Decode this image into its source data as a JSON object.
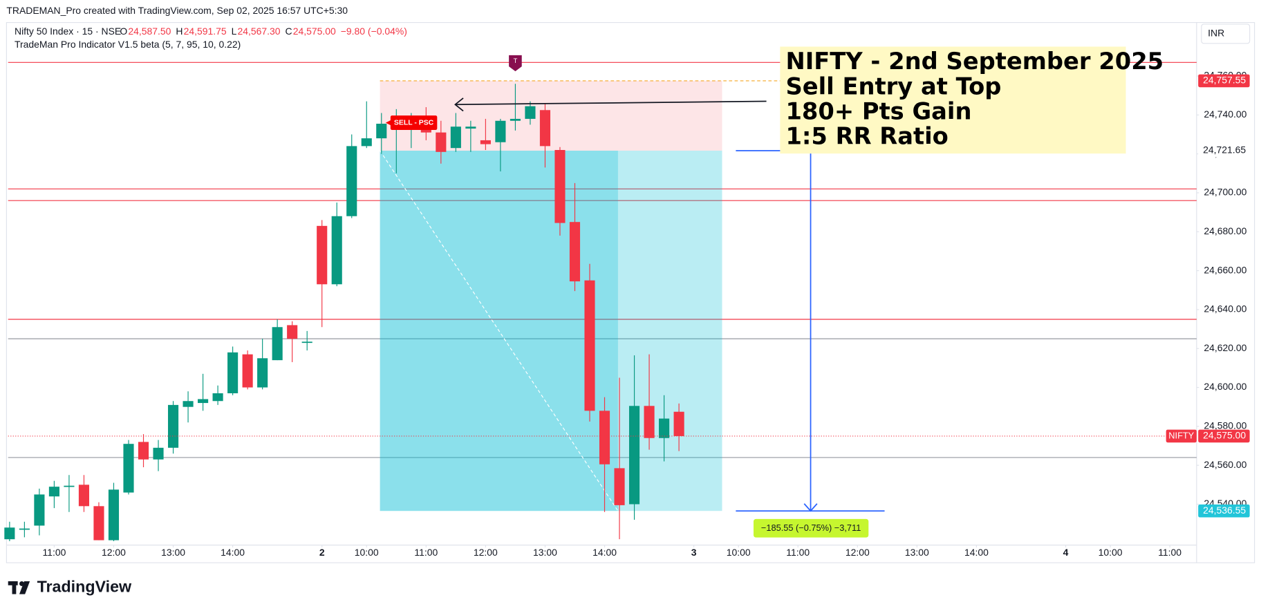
{
  "header": {
    "credit": "TRADEMAN_Pro created with TradingView.com, Sep 02, 2025 16:57 UTC+5:30",
    "symbol": "Nifty 50 Index · 15 · NSE",
    "ohlc": [
      {
        "key": "O",
        "text": "24,587.50"
      },
      {
        "key": "H",
        "text": "24,591.75"
      },
      {
        "key": "L",
        "text": "24,567.30"
      },
      {
        "key": "C",
        "text": "24,575.00"
      }
    ],
    "change": "−9.80 (−0.04%)",
    "indicator": "TradeMan Pro Indicator V1.5 beta (5, 7, 95, 10, 0.22)",
    "currency": "INR"
  },
  "footer": {
    "logo": "TradingView"
  },
  "chart_data": {
    "type": "candlestick",
    "x": [
      0,
      1,
      2,
      3,
      4,
      5,
      6,
      7,
      8,
      9,
      10,
      11,
      12,
      13,
      14,
      15,
      16,
      17,
      18,
      19,
      20,
      21,
      22,
      23,
      24,
      25,
      26,
      27,
      28,
      29,
      30,
      31,
      32,
      33,
      34,
      35,
      36,
      37,
      38,
      39,
      40,
      41,
      42,
      43,
      44,
      45
    ],
    "open": [
      24522,
      24527,
      24529,
      24544,
      24549,
      24550,
      24539,
      24521.5,
      24546,
      24572,
      24563,
      24569,
      24590,
      24592,
      24593,
      24597,
      24617,
      24600,
      24614,
      24632,
      24623,
      24683,
      24653,
      24688,
      24724,
      24728,
      24735,
      24735,
      24737,
      24731,
      24723,
      24733,
      24727,
      24726,
      24737,
      24738,
      24742.5,
      24722,
      24685,
      24655,
      24588,
      24558.5,
      24540,
      24590.5,
      24574,
      24587.5
    ],
    "high": [
      24531,
      24531,
      24548,
      24552,
      24555,
      24555,
      24541,
      24551,
      24573,
      24576,
      24573,
      24593,
      24598,
      24607,
      24601,
      24621,
      24619,
      24625,
      24635,
      24634,
      24629,
      24686,
      24695,
      24730,
      24747,
      24741,
      24743,
      24741,
      24744,
      24737,
      24741,
      24737,
      24738,
      24738,
      24756,
      24747,
      24746,
      24723.5,
      24705,
      24663.5,
      24595,
      24605,
      24616.5,
      24617,
      24596,
      24591.75
    ],
    "low": [
      24521,
      24523,
      24524,
      24538,
      24536,
      24536,
      24521.5,
      24521,
      24545,
      24559,
      24557,
      24566,
      24582,
      24588,
      24591,
      24596,
      24599,
      24599,
      24614,
      24613,
      24619,
      24631,
      24652,
      24687,
      24723,
      24720,
      24710,
      24723,
      24727,
      24715,
      24721,
      24721,
      24722,
      24711,
      24732,
      24735,
      24713,
      24678,
      24649.5,
      24582.5,
      24536,
      24522,
      24532,
      24568,
      24562,
      24567.3
    ],
    "close": [
      24528,
      24527.5,
      24545,
      24549,
      24549.5,
      24539,
      24521.5,
      24547.5,
      24571,
      24563,
      24569,
      24591,
      24593,
      24594,
      24597,
      24618,
      24600,
      24615,
      24631,
      24625,
      24623.5,
      24653,
      24688,
      24724,
      24728,
      24735.5,
      24736,
      24737,
      24731,
      24721,
      24734,
      24734,
      24725,
      24737,
      24738,
      24744.5,
      24724,
      24684.5,
      24654.5,
      24588,
      24560.5,
      24539.5,
      24590.5,
      24574,
      24584,
      24575
    ],
    "up_color": "#089981",
    "down_color": "#f23645",
    "xlim": [
      -0.1,
      79.8
    ],
    "xticks": [
      {
        "value": 3,
        "label": "11:00"
      },
      {
        "value": 7,
        "label": "12:00"
      },
      {
        "value": 11,
        "label": "13:00"
      },
      {
        "value": 15,
        "label": "14:00"
      },
      {
        "value": 21,
        "label": "2"
      },
      {
        "value": 24,
        "label": "10:00"
      },
      {
        "value": 28,
        "label": "11:00"
      },
      {
        "value": 32,
        "label": "12:00"
      },
      {
        "value": 36,
        "label": "13:00"
      },
      {
        "value": 40,
        "label": "14:00"
      },
      {
        "value": 46,
        "label": "3"
      },
      {
        "value": 49,
        "label": "10:00"
      },
      {
        "value": 53,
        "label": "11:00"
      },
      {
        "value": 57,
        "label": "12:00"
      },
      {
        "value": 61,
        "label": "13:00"
      },
      {
        "value": 65,
        "label": "14:00"
      },
      {
        "value": 71,
        "label": "4"
      },
      {
        "value": 74,
        "label": "10:00"
      },
      {
        "value": 78,
        "label": "11:00"
      }
    ],
    "ylim": [
      24519,
      24787.5
    ],
    "yticks": [
      {
        "value": 24540,
        "label": "24,540.00"
      },
      {
        "value": 24560,
        "label": "24,560.00"
      },
      {
        "value": 24580,
        "label": "24,580.00"
      },
      {
        "value": 24600,
        "label": "24,600.00"
      },
      {
        "value": 24620,
        "label": "24,620.00"
      },
      {
        "value": 24640,
        "label": "24,640.00"
      },
      {
        "value": 24660,
        "label": "24,660.00"
      },
      {
        "value": 24680,
        "label": "24,680.00"
      },
      {
        "value": 24700,
        "label": "24,700.00"
      },
      {
        "value": 24720,
        "label": "24,720.00"
      },
      {
        "value": 24740,
        "label": "24,740.00"
      },
      {
        "value": 24760,
        "label": "24,760.00"
      }
    ],
    "levels": [
      {
        "value": 24767,
        "color": "#f23645"
      },
      {
        "value": 24702,
        "color": "#f23645"
      },
      {
        "value": 24696,
        "color": "#f23645"
      },
      {
        "value": 24635,
        "color": "#f23645"
      },
      {
        "value": 24625,
        "color": "#9598a1"
      },
      {
        "value": 24564,
        "color": "#9598a1"
      }
    ],
    "last_price": {
      "name": "NIFTY",
      "value": 24575,
      "label": "24,575.00",
      "color": "#f23645"
    },
    "position": {
      "start": 24.9,
      "end": 47.9,
      "progress": 40.9,
      "stop": {
        "value": 24757.55,
        "label": "24,757.55",
        "color": "#f23645"
      },
      "entry": {
        "value": 24721.65,
        "label": "24,721.65"
      },
      "target": {
        "value": 24536.55,
        "label": "24,536.55",
        "color": "#22c5d9"
      }
    },
    "measure": {
      "label": "−185.55 (−0.75%) −3,711"
    },
    "signal": {
      "label": "SELL - PSC",
      "x": 25.5,
      "value": 24736
    },
    "marker": {
      "label": "T",
      "x": 34,
      "value": 24767
    },
    "annotation": [
      "NIFTY - 2nd September 2025",
      "Sell Entry at Top",
      "180+ Pts Gain",
      "1:5 RR Ratio"
    ]
  }
}
